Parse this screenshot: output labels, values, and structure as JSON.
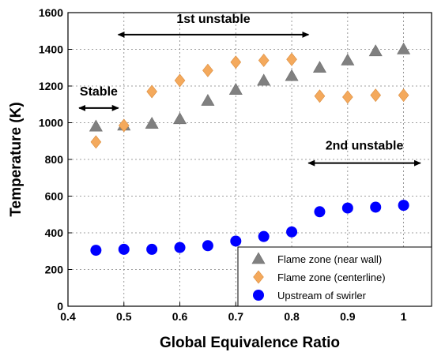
{
  "chart_data": {
    "type": "scatter",
    "xlabel": "Global Equivalence Ratio",
    "ylabel": "Temperature (K)",
    "xlim": [
      0.4,
      1.05
    ],
    "ylim": [
      0,
      1600
    ],
    "xticks": [
      "0.4",
      "0.5",
      "0.6",
      "0.7",
      "0.8",
      "0.9",
      "1"
    ],
    "xtick_values": [
      0.4,
      0.5,
      0.6,
      0.7,
      0.8,
      0.9,
      1.0
    ],
    "yticks": [
      "0",
      "200",
      "400",
      "600",
      "800",
      "1000",
      "1200",
      "1400",
      "1600"
    ],
    "ytick_values": [
      0,
      200,
      400,
      600,
      800,
      1000,
      1200,
      1400,
      1600
    ],
    "grid": true,
    "legend_position": "bottom-right",
    "series": [
      {
        "name": "Flame zone (near wall)",
        "marker": "triangle",
        "color": "#808080",
        "x": [
          0.45,
          0.5,
          0.55,
          0.6,
          0.65,
          0.7,
          0.75,
          0.8,
          0.85,
          0.9,
          0.95,
          1.0
        ],
        "y": [
          980,
          985,
          995,
          1020,
          1120,
          1180,
          1230,
          1255,
          1300,
          1340,
          1390,
          1400
        ]
      },
      {
        "name": "Flame zone (centerline)",
        "marker": "diamond",
        "color": "#f4a95c",
        "x": [
          0.45,
          0.5,
          0.55,
          0.6,
          0.65,
          0.7,
          0.75,
          0.8,
          0.85,
          0.9,
          0.95,
          1.0
        ],
        "y": [
          895,
          985,
          1170,
          1230,
          1285,
          1330,
          1340,
          1345,
          1145,
          1140,
          1150,
          1150
        ]
      },
      {
        "name": "Upstream of swirler",
        "marker": "circle",
        "color": "#0000ff",
        "x": [
          0.45,
          0.5,
          0.55,
          0.6,
          0.65,
          0.7,
          0.75,
          0.8,
          0.85,
          0.9,
          0.95,
          1.0
        ],
        "y": [
          305,
          310,
          310,
          320,
          330,
          355,
          380,
          405,
          515,
          535,
          540,
          550
        ]
      }
    ],
    "annotations": [
      {
        "text": "Stable",
        "x_range": [
          0.42,
          0.49
        ],
        "y": 1080,
        "label_y": 1175
      },
      {
        "text": "1st unstable",
        "x_range": [
          0.49,
          0.83
        ],
        "y": 1480,
        "label_y": 1570
      },
      {
        "text": "2nd unstable",
        "x_range": [
          0.83,
          1.03
        ],
        "y": 780,
        "label_y": 880
      }
    ]
  }
}
